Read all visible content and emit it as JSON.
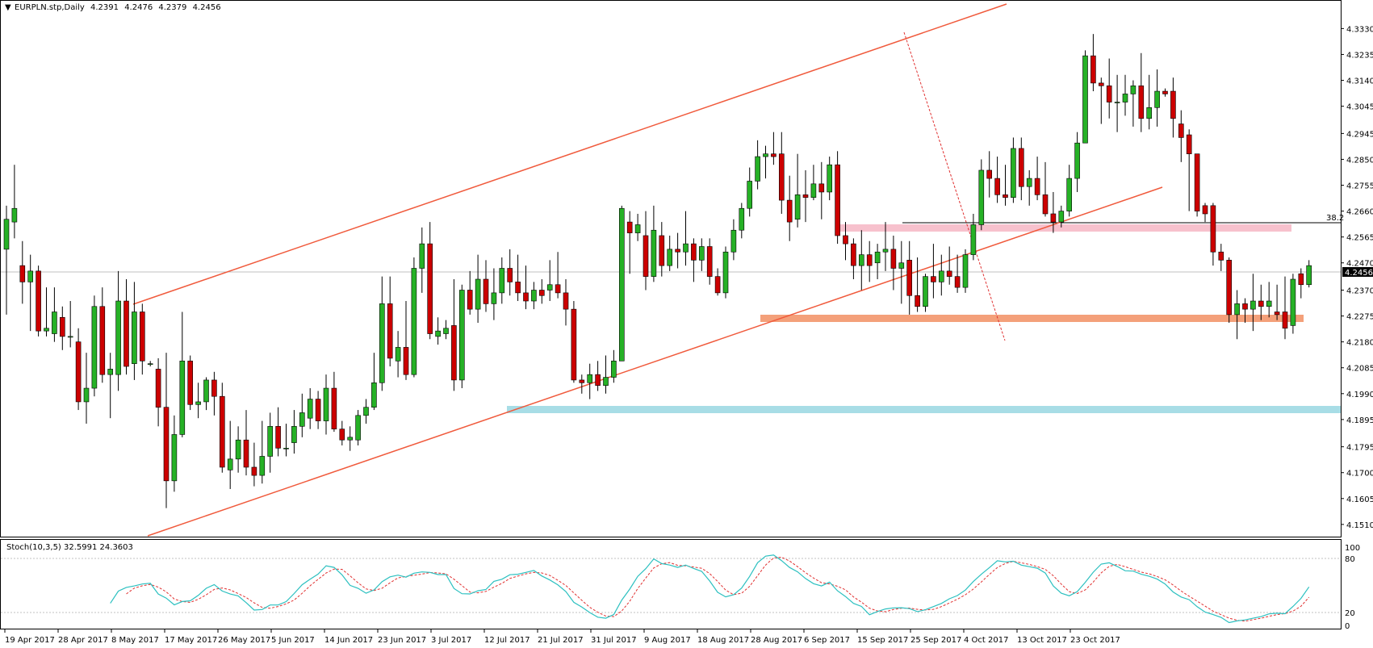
{
  "header": {
    "symbol_line": "EURPLN.stp,Daily",
    "open": "4.2391",
    "high": "4.2476",
    "low": "4.2379",
    "close": "4.2456"
  },
  "indicator": {
    "label": "Stoch(10,3,5) 32.5991 24.3603",
    "levels": [
      "100",
      "80",
      "20",
      "0"
    ]
  },
  "price_axis": {
    "ticks": [
      "4.3330",
      "4.3235",
      "4.3140",
      "4.3045",
      "4.2945",
      "4.2850",
      "4.2755",
      "4.2660",
      "4.2565",
      "4.2470",
      "4.2370",
      "4.2275",
      "4.2180",
      "4.2085",
      "4.1990",
      "4.1895",
      "4.1795",
      "4.1700",
      "4.1605",
      "4.1510"
    ],
    "current_price": "4.2456",
    "fib_label": "38.2"
  },
  "colors": {
    "bull": "#26b126",
    "bear": "#cc0000",
    "channel": "#f05a3c",
    "zone_pink": "#f7c1cd",
    "zone_orange": "#f4a07a",
    "zone_cyan": "#a8dde6",
    "stoch_main": "#2cc0c0",
    "stoch_signal": "#e03030"
  },
  "chart_data": {
    "type": "candlestick",
    "symbol": "EURPLN",
    "timeframe": "Daily",
    "ylim": [
      4.148,
      4.342
    ],
    "x_labels": [
      "19 Apr 2017",
      "28 Apr 2017",
      "8 May 2017",
      "17 May 2017",
      "26 May 2017",
      "5 Jun 2017",
      "14 Jun 2017",
      "23 Jun 2017",
      "3 Jul 2017",
      "12 Jul 2017",
      "21 Jul 2017",
      "31 Jul 2017",
      "9 Aug 2017",
      "18 Aug 2017",
      "28 Aug 2017",
      "6 Sep 2017",
      "15 Sep 2017",
      "25 Sep 2017",
      "4 Oct 2017",
      "13 Oct 2017",
      "23 Oct 2017"
    ],
    "candles": [
      {
        "o": 4.252,
        "h": 4.268,
        "l": 4.228,
        "c": 4.263
      },
      {
        "o": 4.262,
        "h": 4.283,
        "l": 4.256,
        "c": 4.267
      },
      {
        "o": 4.246,
        "h": 4.255,
        "l": 4.232,
        "c": 4.24
      },
      {
        "o": 4.24,
        "h": 4.25,
        "l": 4.222,
        "c": 4.244
      },
      {
        "o": 4.244,
        "h": 4.246,
        "l": 4.22,
        "c": 4.222
      },
      {
        "o": 4.222,
        "h": 4.238,
        "l": 4.22,
        "c": 4.223
      },
      {
        "o": 4.221,
        "h": 4.238,
        "l": 4.218,
        "c": 4.229
      },
      {
        "o": 4.227,
        "h": 4.231,
        "l": 4.215,
        "c": 4.22
      },
      {
        "o": 4.22,
        "h": 4.233,
        "l": 4.216,
        "c": 4.22
      },
      {
        "o": 4.218,
        "h": 4.223,
        "l": 4.193,
        "c": 4.196
      },
      {
        "o": 4.196,
        "h": 4.214,
        "l": 4.188,
        "c": 4.201
      },
      {
        "o": 4.201,
        "h": 4.235,
        "l": 4.198,
        "c": 4.231
      },
      {
        "o": 4.231,
        "h": 4.238,
        "l": 4.203,
        "c": 4.206
      },
      {
        "o": 4.206,
        "h": 4.214,
        "l": 4.19,
        "c": 4.208
      },
      {
        "o": 4.206,
        "h": 4.244,
        "l": 4.2,
        "c": 4.233
      },
      {
        "o": 4.233,
        "h": 4.241,
        "l": 4.206,
        "c": 4.209
      },
      {
        "o": 4.21,
        "h": 4.24,
        "l": 4.204,
        "c": 4.229
      },
      {
        "o": 4.229,
        "h": 4.232,
        "l": 4.206,
        "c": 4.211
      },
      {
        "o": 4.21,
        "h": 4.211,
        "l": 4.209,
        "c": 4.21
      },
      {
        "o": 4.208,
        "h": 4.212,
        "l": 4.187,
        "c": 4.194
      },
      {
        "o": 4.194,
        "h": 4.214,
        "l": 4.157,
        "c": 4.167
      },
      {
        "o": 4.167,
        "h": 4.191,
        "l": 4.163,
        "c": 4.184
      },
      {
        "o": 4.184,
        "h": 4.229,
        "l": 4.183,
        "c": 4.211
      },
      {
        "o": 4.211,
        "h": 4.213,
        "l": 4.193,
        "c": 4.195
      },
      {
        "o": 4.195,
        "h": 4.203,
        "l": 4.19,
        "c": 4.196
      },
      {
        "o": 4.196,
        "h": 4.205,
        "l": 4.193,
        "c": 4.204
      },
      {
        "o": 4.204,
        "h": 4.207,
        "l": 4.191,
        "c": 4.198
      },
      {
        "o": 4.198,
        "h": 4.203,
        "l": 4.17,
        "c": 4.172
      },
      {
        "o": 4.171,
        "h": 4.189,
        "l": 4.164,
        "c": 4.175
      },
      {
        "o": 4.175,
        "h": 4.187,
        "l": 4.17,
        "c": 4.182
      },
      {
        "o": 4.182,
        "h": 4.193,
        "l": 4.169,
        "c": 4.172
      },
      {
        "o": 4.172,
        "h": 4.181,
        "l": 4.165,
        "c": 4.169
      },
      {
        "o": 4.169,
        "h": 4.189,
        "l": 4.166,
        "c": 4.176
      },
      {
        "o": 4.176,
        "h": 4.192,
        "l": 4.17,
        "c": 4.187
      },
      {
        "o": 4.187,
        "h": 4.194,
        "l": 4.176,
        "c": 4.179
      },
      {
        "o": 4.179,
        "h": 4.188,
        "l": 4.176,
        "c": 4.179
      },
      {
        "o": 4.181,
        "h": 4.193,
        "l": 4.177,
        "c": 4.187
      },
      {
        "o": 4.187,
        "h": 4.199,
        "l": 4.183,
        "c": 4.192
      },
      {
        "o": 4.19,
        "h": 4.201,
        "l": 4.186,
        "c": 4.197
      },
      {
        "o": 4.197,
        "h": 4.2,
        "l": 4.186,
        "c": 4.189
      },
      {
        "o": 4.189,
        "h": 4.206,
        "l": 4.184,
        "c": 4.201
      },
      {
        "o": 4.201,
        "h": 4.207,
        "l": 4.185,
        "c": 4.186
      },
      {
        "o": 4.186,
        "h": 4.189,
        "l": 4.18,
        "c": 4.182
      },
      {
        "o": 4.182,
        "h": 4.187,
        "l": 4.178,
        "c": 4.183
      },
      {
        "o": 4.182,
        "h": 4.193,
        "l": 4.18,
        "c": 4.191
      },
      {
        "o": 4.191,
        "h": 4.197,
        "l": 4.188,
        "c": 4.194
      },
      {
        "o": 4.194,
        "h": 4.214,
        "l": 4.193,
        "c": 4.203
      },
      {
        "o": 4.203,
        "h": 4.242,
        "l": 4.2,
        "c": 4.232
      },
      {
        "o": 4.232,
        "h": 4.242,
        "l": 4.209,
        "c": 4.212
      },
      {
        "o": 4.211,
        "h": 4.222,
        "l": 4.205,
        "c": 4.216
      },
      {
        "o": 4.216,
        "h": 4.233,
        "l": 4.204,
        "c": 4.206
      },
      {
        "o": 4.206,
        "h": 4.249,
        "l": 4.205,
        "c": 4.245
      },
      {
        "o": 4.245,
        "h": 4.26,
        "l": 4.236,
        "c": 4.254
      },
      {
        "o": 4.254,
        "h": 4.262,
        "l": 4.219,
        "c": 4.221
      },
      {
        "o": 4.22,
        "h": 4.227,
        "l": 4.217,
        "c": 4.222
      },
      {
        "o": 4.221,
        "h": 4.226,
        "l": 4.219,
        "c": 4.223
      },
      {
        "o": 4.224,
        "h": 4.241,
        "l": 4.2,
        "c": 4.204
      },
      {
        "o": 4.204,
        "h": 4.239,
        "l": 4.201,
        "c": 4.237
      },
      {
        "o": 4.237,
        "h": 4.244,
        "l": 4.228,
        "c": 4.23
      },
      {
        "o": 4.23,
        "h": 4.25,
        "l": 4.225,
        "c": 4.241
      },
      {
        "o": 4.241,
        "h": 4.248,
        "l": 4.229,
        "c": 4.232
      },
      {
        "o": 4.232,
        "h": 4.245,
        "l": 4.226,
        "c": 4.236
      },
      {
        "o": 4.236,
        "h": 4.249,
        "l": 4.232,
        "c": 4.245
      },
      {
        "o": 4.245,
        "h": 4.252,
        "l": 4.235,
        "c": 4.24
      },
      {
        "o": 4.24,
        "h": 4.25,
        "l": 4.233,
        "c": 4.236
      },
      {
        "o": 4.236,
        "h": 4.246,
        "l": 4.23,
        "c": 4.233
      },
      {
        "o": 4.233,
        "h": 4.24,
        "l": 4.23,
        "c": 4.237
      },
      {
        "o": 4.237,
        "h": 4.241,
        "l": 4.232,
        "c": 4.235
      },
      {
        "o": 4.237,
        "h": 4.248,
        "l": 4.233,
        "c": 4.239
      },
      {
        "o": 4.239,
        "h": 4.251,
        "l": 4.234,
        "c": 4.236
      },
      {
        "o": 4.236,
        "h": 4.241,
        "l": 4.224,
        "c": 4.23
      },
      {
        "o": 4.23,
        "h": 4.233,
        "l": 4.203,
        "c": 4.204
      },
      {
        "o": 4.204,
        "h": 4.206,
        "l": 4.199,
        "c": 4.203
      },
      {
        "o": 4.203,
        "h": 4.21,
        "l": 4.197,
        "c": 4.206
      },
      {
        "o": 4.206,
        "h": 4.211,
        "l": 4.2,
        "c": 4.202
      },
      {
        "o": 4.202,
        "h": 4.213,
        "l": 4.199,
        "c": 4.205
      },
      {
        "o": 4.205,
        "h": 4.215,
        "l": 4.203,
        "c": 4.211
      },
      {
        "o": 4.211,
        "h": 4.268,
        "l": 4.211,
        "c": 4.267
      },
      {
        "o": 4.262,
        "h": 4.266,
        "l": 4.243,
        "c": 4.258
      },
      {
        "o": 4.258,
        "h": 4.265,
        "l": 4.255,
        "c": 4.261
      },
      {
        "o": 4.257,
        "h": 4.266,
        "l": 4.237,
        "c": 4.242
      },
      {
        "o": 4.242,
        "h": 4.268,
        "l": 4.24,
        "c": 4.259
      },
      {
        "o": 4.257,
        "h": 4.262,
        "l": 4.242,
        "c": 4.246
      },
      {
        "o": 4.246,
        "h": 4.257,
        "l": 4.244,
        "c": 4.252
      },
      {
        "o": 4.252,
        "h": 4.258,
        "l": 4.245,
        "c": 4.251
      },
      {
        "o": 4.251,
        "h": 4.266,
        "l": 4.246,
        "c": 4.254
      },
      {
        "o": 4.254,
        "h": 4.256,
        "l": 4.24,
        "c": 4.248
      },
      {
        "o": 4.248,
        "h": 4.256,
        "l": 4.244,
        "c": 4.253
      },
      {
        "o": 4.253,
        "h": 4.256,
        "l": 4.239,
        "c": 4.242
      },
      {
        "o": 4.242,
        "h": 4.245,
        "l": 4.235,
        "c": 4.236
      },
      {
        "o": 4.236,
        "h": 4.253,
        "l": 4.234,
        "c": 4.251
      },
      {
        "o": 4.251,
        "h": 4.263,
        "l": 4.248,
        "c": 4.259
      },
      {
        "o": 4.259,
        "h": 4.269,
        "l": 4.256,
        "c": 4.267
      },
      {
        "o": 4.267,
        "h": 4.282,
        "l": 4.264,
        "c": 4.277
      },
      {
        "o": 4.277,
        "h": 4.292,
        "l": 4.274,
        "c": 4.286
      },
      {
        "o": 4.286,
        "h": 4.29,
        "l": 4.278,
        "c": 4.287
      },
      {
        "o": 4.287,
        "h": 4.295,
        "l": 4.283,
        "c": 4.286
      },
      {
        "o": 4.287,
        "h": 4.295,
        "l": 4.265,
        "c": 4.27
      },
      {
        "o": 4.27,
        "h": 4.279,
        "l": 4.255,
        "c": 4.262
      },
      {
        "o": 4.263,
        "h": 4.287,
        "l": 4.26,
        "c": 4.272
      },
      {
        "o": 4.272,
        "h": 4.281,
        "l": 4.262,
        "c": 4.271
      },
      {
        "o": 4.271,
        "h": 4.283,
        "l": 4.27,
        "c": 4.276
      },
      {
        "o": 4.276,
        "h": 4.284,
        "l": 4.263,
        "c": 4.273
      },
      {
        "o": 4.273,
        "h": 4.286,
        "l": 4.27,
        "c": 4.283
      },
      {
        "o": 4.283,
        "h": 4.288,
        "l": 4.254,
        "c": 4.257
      },
      {
        "o": 4.257,
        "h": 4.262,
        "l": 4.248,
        "c": 4.254
      },
      {
        "o": 4.254,
        "h": 4.256,
        "l": 4.241,
        "c": 4.246
      },
      {
        "o": 4.246,
        "h": 4.259,
        "l": 4.237,
        "c": 4.25
      },
      {
        "o": 4.25,
        "h": 4.255,
        "l": 4.24,
        "c": 4.246
      },
      {
        "o": 4.247,
        "h": 4.254,
        "l": 4.241,
        "c": 4.251
      },
      {
        "o": 4.251,
        "h": 4.262,
        "l": 4.244,
        "c": 4.252
      },
      {
        "o": 4.252,
        "h": 4.257,
        "l": 4.237,
        "c": 4.245
      },
      {
        "o": 4.245,
        "h": 4.255,
        "l": 4.232,
        "c": 4.247
      },
      {
        "o": 4.248,
        "h": 4.255,
        "l": 4.228,
        "c": 4.235
      },
      {
        "o": 4.235,
        "h": 4.249,
        "l": 4.229,
        "c": 4.231
      },
      {
        "o": 4.231,
        "h": 4.243,
        "l": 4.229,
        "c": 4.242
      },
      {
        "o": 4.242,
        "h": 4.254,
        "l": 4.234,
        "c": 4.24
      },
      {
        "o": 4.24,
        "h": 4.25,
        "l": 4.235,
        "c": 4.244
      },
      {
        "o": 4.244,
        "h": 4.253,
        "l": 4.239,
        "c": 4.242
      },
      {
        "o": 4.242,
        "h": 4.25,
        "l": 4.236,
        "c": 4.238
      },
      {
        "o": 4.238,
        "h": 4.252,
        "l": 4.236,
        "c": 4.25
      },
      {
        "o": 4.25,
        "h": 4.265,
        "l": 4.248,
        "c": 4.261
      },
      {
        "o": 4.261,
        "h": 4.285,
        "l": 4.259,
        "c": 4.281
      },
      {
        "o": 4.281,
        "h": 4.288,
        "l": 4.271,
        "c": 4.278
      },
      {
        "o": 4.278,
        "h": 4.286,
        "l": 4.269,
        "c": 4.272
      },
      {
        "o": 4.272,
        "h": 4.283,
        "l": 4.268,
        "c": 4.271
      },
      {
        "o": 4.271,
        "h": 4.293,
        "l": 4.269,
        "c": 4.289
      },
      {
        "o": 4.289,
        "h": 4.293,
        "l": 4.27,
        "c": 4.275
      },
      {
        "o": 4.275,
        "h": 4.281,
        "l": 4.268,
        "c": 4.278
      },
      {
        "o": 4.278,
        "h": 4.286,
        "l": 4.27,
        "c": 4.272
      },
      {
        "o": 4.272,
        "h": 4.284,
        "l": 4.264,
        "c": 4.265
      },
      {
        "o": 4.265,
        "h": 4.273,
        "l": 4.258,
        "c": 4.262
      },
      {
        "o": 4.262,
        "h": 4.268,
        "l": 4.26,
        "c": 4.266
      },
      {
        "o": 4.266,
        "h": 4.283,
        "l": 4.264,
        "c": 4.278
      },
      {
        "o": 4.278,
        "h": 4.295,
        "l": 4.273,
        "c": 4.291
      },
      {
        "o": 4.291,
        "h": 4.325,
        "l": 4.291,
        "c": 4.323
      },
      {
        "o": 4.323,
        "h": 4.331,
        "l": 4.31,
        "c": 4.313
      },
      {
        "o": 4.313,
        "h": 4.315,
        "l": 4.298,
        "c": 4.312
      },
      {
        "o": 4.312,
        "h": 4.322,
        "l": 4.3,
        "c": 4.306
      },
      {
        "o": 4.306,
        "h": 4.316,
        "l": 4.295,
        "c": 4.306
      },
      {
        "o": 4.306,
        "h": 4.316,
        "l": 4.301,
        "c": 4.309
      },
      {
        "o": 4.309,
        "h": 4.314,
        "l": 4.297,
        "c": 4.312
      },
      {
        "o": 4.312,
        "h": 4.324,
        "l": 4.295,
        "c": 4.3
      },
      {
        "o": 4.3,
        "h": 4.316,
        "l": 4.296,
        "c": 4.304
      },
      {
        "o": 4.304,
        "h": 4.318,
        "l": 4.297,
        "c": 4.31
      },
      {
        "o": 4.31,
        "h": 4.311,
        "l": 4.308,
        "c": 4.309
      },
      {
        "o": 4.31,
        "h": 4.315,
        "l": 4.293,
        "c": 4.3
      },
      {
        "o": 4.298,
        "h": 4.303,
        "l": 4.284,
        "c": 4.293
      },
      {
        "o": 4.294,
        "h": 4.296,
        "l": 4.266,
        "c": 4.287
      },
      {
        "o": 4.287,
        "h": 4.287,
        "l": 4.264,
        "c": 4.266
      },
      {
        "o": 4.268,
        "h": 4.269,
        "l": 4.262,
        "c": 4.265
      },
      {
        "o": 4.268,
        "h": 4.269,
        "l": 4.246,
        "c": 4.251
      },
      {
        "o": 4.251,
        "h": 4.254,
        "l": 4.244,
        "c": 4.248
      },
      {
        "o": 4.248,
        "h": 4.249,
        "l": 4.225,
        "c": 4.228
      },
      {
        "o": 4.228,
        "h": 4.237,
        "l": 4.219,
        "c": 4.232
      },
      {
        "o": 4.232,
        "h": 4.234,
        "l": 4.225,
        "c": 4.23
      },
      {
        "o": 4.23,
        "h": 4.243,
        "l": 4.222,
        "c": 4.233
      },
      {
        "o": 4.233,
        "h": 4.239,
        "l": 4.226,
        "c": 4.231
      },
      {
        "o": 4.231,
        "h": 4.24,
        "l": 4.227,
        "c": 4.233
      },
      {
        "o": 4.229,
        "h": 4.239,
        "l": 4.226,
        "c": 4.228
      },
      {
        "o": 4.229,
        "h": 4.242,
        "l": 4.219,
        "c": 4.223
      },
      {
        "o": 4.224,
        "h": 4.243,
        "l": 4.221,
        "c": 4.241
      },
      {
        "o": 4.243,
        "h": 4.245,
        "l": 4.234,
        "c": 4.239
      },
      {
        "o": 4.239,
        "h": 4.248,
        "l": 4.238,
        "c": 4.246
      }
    ],
    "stoch": {
      "label": "Stoch(10,3,5)",
      "main_last": 32.5991,
      "signal_last": 24.3603
    }
  }
}
